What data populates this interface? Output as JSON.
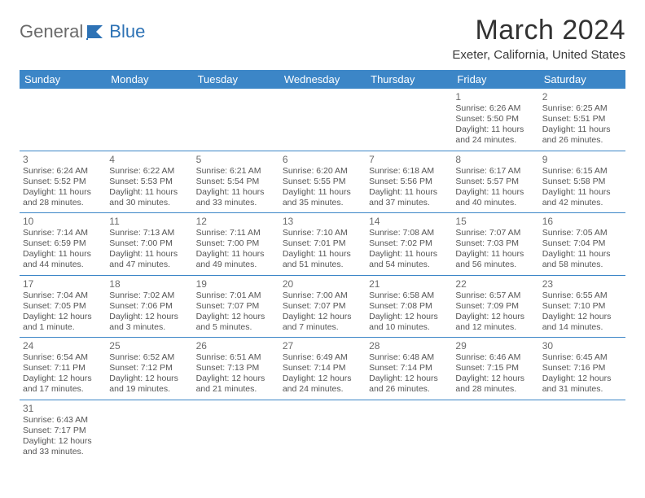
{
  "brand": {
    "part1": "General",
    "part2": "Blue"
  },
  "title": "March 2024",
  "location": "Exeter, California, United States",
  "colors": {
    "header_bg": "#3c86c7",
    "header_fg": "#ffffff",
    "text": "#454545",
    "brand_gray": "#6a6a6a",
    "brand_blue": "#2d72b5",
    "divider": "#3c86c7"
  },
  "weekdays": [
    "Sunday",
    "Monday",
    "Tuesday",
    "Wednesday",
    "Thursday",
    "Friday",
    "Saturday"
  ],
  "weeks": [
    [
      null,
      null,
      null,
      null,
      null,
      {
        "d": "1",
        "sr": "Sunrise: 6:26 AM",
        "ss": "Sunset: 5:50 PM",
        "dl1": "Daylight: 11 hours",
        "dl2": "and 24 minutes."
      },
      {
        "d": "2",
        "sr": "Sunrise: 6:25 AM",
        "ss": "Sunset: 5:51 PM",
        "dl1": "Daylight: 11 hours",
        "dl2": "and 26 minutes."
      }
    ],
    [
      {
        "d": "3",
        "sr": "Sunrise: 6:24 AM",
        "ss": "Sunset: 5:52 PM",
        "dl1": "Daylight: 11 hours",
        "dl2": "and 28 minutes."
      },
      {
        "d": "4",
        "sr": "Sunrise: 6:22 AM",
        "ss": "Sunset: 5:53 PM",
        "dl1": "Daylight: 11 hours",
        "dl2": "and 30 minutes."
      },
      {
        "d": "5",
        "sr": "Sunrise: 6:21 AM",
        "ss": "Sunset: 5:54 PM",
        "dl1": "Daylight: 11 hours",
        "dl2": "and 33 minutes."
      },
      {
        "d": "6",
        "sr": "Sunrise: 6:20 AM",
        "ss": "Sunset: 5:55 PM",
        "dl1": "Daylight: 11 hours",
        "dl2": "and 35 minutes."
      },
      {
        "d": "7",
        "sr": "Sunrise: 6:18 AM",
        "ss": "Sunset: 5:56 PM",
        "dl1": "Daylight: 11 hours",
        "dl2": "and 37 minutes."
      },
      {
        "d": "8",
        "sr": "Sunrise: 6:17 AM",
        "ss": "Sunset: 5:57 PM",
        "dl1": "Daylight: 11 hours",
        "dl2": "and 40 minutes."
      },
      {
        "d": "9",
        "sr": "Sunrise: 6:15 AM",
        "ss": "Sunset: 5:58 PM",
        "dl1": "Daylight: 11 hours",
        "dl2": "and 42 minutes."
      }
    ],
    [
      {
        "d": "10",
        "sr": "Sunrise: 7:14 AM",
        "ss": "Sunset: 6:59 PM",
        "dl1": "Daylight: 11 hours",
        "dl2": "and 44 minutes."
      },
      {
        "d": "11",
        "sr": "Sunrise: 7:13 AM",
        "ss": "Sunset: 7:00 PM",
        "dl1": "Daylight: 11 hours",
        "dl2": "and 47 minutes."
      },
      {
        "d": "12",
        "sr": "Sunrise: 7:11 AM",
        "ss": "Sunset: 7:00 PM",
        "dl1": "Daylight: 11 hours",
        "dl2": "and 49 minutes."
      },
      {
        "d": "13",
        "sr": "Sunrise: 7:10 AM",
        "ss": "Sunset: 7:01 PM",
        "dl1": "Daylight: 11 hours",
        "dl2": "and 51 minutes."
      },
      {
        "d": "14",
        "sr": "Sunrise: 7:08 AM",
        "ss": "Sunset: 7:02 PM",
        "dl1": "Daylight: 11 hours",
        "dl2": "and 54 minutes."
      },
      {
        "d": "15",
        "sr": "Sunrise: 7:07 AM",
        "ss": "Sunset: 7:03 PM",
        "dl1": "Daylight: 11 hours",
        "dl2": "and 56 minutes."
      },
      {
        "d": "16",
        "sr": "Sunrise: 7:05 AM",
        "ss": "Sunset: 7:04 PM",
        "dl1": "Daylight: 11 hours",
        "dl2": "and 58 minutes."
      }
    ],
    [
      {
        "d": "17",
        "sr": "Sunrise: 7:04 AM",
        "ss": "Sunset: 7:05 PM",
        "dl1": "Daylight: 12 hours",
        "dl2": "and 1 minute."
      },
      {
        "d": "18",
        "sr": "Sunrise: 7:02 AM",
        "ss": "Sunset: 7:06 PM",
        "dl1": "Daylight: 12 hours",
        "dl2": "and 3 minutes."
      },
      {
        "d": "19",
        "sr": "Sunrise: 7:01 AM",
        "ss": "Sunset: 7:07 PM",
        "dl1": "Daylight: 12 hours",
        "dl2": "and 5 minutes."
      },
      {
        "d": "20",
        "sr": "Sunrise: 7:00 AM",
        "ss": "Sunset: 7:07 PM",
        "dl1": "Daylight: 12 hours",
        "dl2": "and 7 minutes."
      },
      {
        "d": "21",
        "sr": "Sunrise: 6:58 AM",
        "ss": "Sunset: 7:08 PM",
        "dl1": "Daylight: 12 hours",
        "dl2": "and 10 minutes."
      },
      {
        "d": "22",
        "sr": "Sunrise: 6:57 AM",
        "ss": "Sunset: 7:09 PM",
        "dl1": "Daylight: 12 hours",
        "dl2": "and 12 minutes."
      },
      {
        "d": "23",
        "sr": "Sunrise: 6:55 AM",
        "ss": "Sunset: 7:10 PM",
        "dl1": "Daylight: 12 hours",
        "dl2": "and 14 minutes."
      }
    ],
    [
      {
        "d": "24",
        "sr": "Sunrise: 6:54 AM",
        "ss": "Sunset: 7:11 PM",
        "dl1": "Daylight: 12 hours",
        "dl2": "and 17 minutes."
      },
      {
        "d": "25",
        "sr": "Sunrise: 6:52 AM",
        "ss": "Sunset: 7:12 PM",
        "dl1": "Daylight: 12 hours",
        "dl2": "and 19 minutes."
      },
      {
        "d": "26",
        "sr": "Sunrise: 6:51 AM",
        "ss": "Sunset: 7:13 PM",
        "dl1": "Daylight: 12 hours",
        "dl2": "and 21 minutes."
      },
      {
        "d": "27",
        "sr": "Sunrise: 6:49 AM",
        "ss": "Sunset: 7:14 PM",
        "dl1": "Daylight: 12 hours",
        "dl2": "and 24 minutes."
      },
      {
        "d": "28",
        "sr": "Sunrise: 6:48 AM",
        "ss": "Sunset: 7:14 PM",
        "dl1": "Daylight: 12 hours",
        "dl2": "and 26 minutes."
      },
      {
        "d": "29",
        "sr": "Sunrise: 6:46 AM",
        "ss": "Sunset: 7:15 PM",
        "dl1": "Daylight: 12 hours",
        "dl2": "and 28 minutes."
      },
      {
        "d": "30",
        "sr": "Sunrise: 6:45 AM",
        "ss": "Sunset: 7:16 PM",
        "dl1": "Daylight: 12 hours",
        "dl2": "and 31 minutes."
      }
    ],
    [
      {
        "d": "31",
        "sr": "Sunrise: 6:43 AM",
        "ss": "Sunset: 7:17 PM",
        "dl1": "Daylight: 12 hours",
        "dl2": "and 33 minutes."
      },
      null,
      null,
      null,
      null,
      null,
      null
    ]
  ]
}
